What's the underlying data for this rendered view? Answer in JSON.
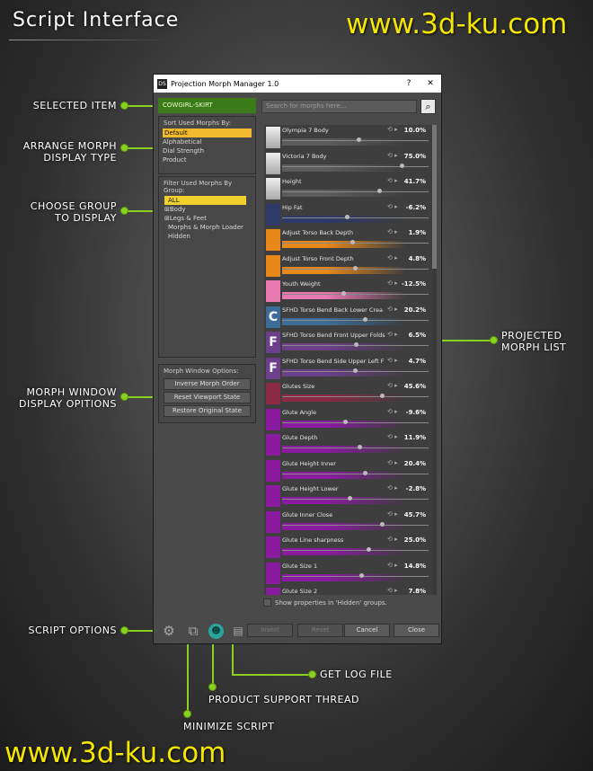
{
  "header": {
    "title": "Script Interface",
    "watermark": "www.3d-ku.com"
  },
  "callouts": {
    "selected_item": "Selected Item",
    "arrange_morph": "Arrange Morph Display Type",
    "choose_group": "Choose Group to Display",
    "morph_window": "Morph Window Display Opitions",
    "script_options": "Script Options",
    "projected_list": "Projected Morph List",
    "get_log": "Get Log File",
    "support_thread": "Product Support Thread",
    "minimize": "Minimize Script"
  },
  "window": {
    "title": "Projection Morph Manager 1.0",
    "logo": "DS",
    "help_btn": "?",
    "close_btn": "✕",
    "selected_item": "COWGIRL-SKIRT",
    "search_placeholder": "Search for morphs here...",
    "sort_title": "Sort Used Morphs By:",
    "sort_options": [
      "Default",
      "Alphabetical",
      "Dial Strength",
      "Product"
    ],
    "filter_title": "Filter Used Morphs By Group:",
    "groups": [
      "ALL",
      "Body",
      "Legs & Feet",
      "Morphs & Morph Loader",
      "Hidden"
    ],
    "window_options_title": "Morph Window Options:",
    "window_buttons": [
      "Inverse Morph Order",
      "Reset Viewport State",
      "Restore Original State"
    ],
    "show_hidden": "Show properties in 'Hidden' groups.",
    "bottom_buttons": [
      "Invert",
      "Reset",
      "Cancel",
      "Close"
    ],
    "accent": "#8ad11f"
  },
  "morphs": [
    {
      "name": "Olympia 7 Body",
      "value": "10.0%",
      "icon": "figure",
      "color": "#5c5c5c"
    },
    {
      "name": "Victoria 7 Body",
      "value": "75.0%",
      "icon": "figure",
      "color": "#5c5c5c"
    },
    {
      "name": "Height",
      "value": "41.7%",
      "icon": "figure",
      "color": "#5c5c5c"
    },
    {
      "name": "Hip Fat",
      "value": "-6.2%",
      "icon": "",
      "color": "#2d3a6a"
    },
    {
      "name": "Adjust Torso Back Depth",
      "value": "1.9%",
      "icon": "",
      "color": "#e8881a"
    },
    {
      "name": "Adjust Torso Front Depth",
      "value": "4.8%",
      "icon": "",
      "color": "#e8881a"
    },
    {
      "name": "Youth Weight",
      "value": "-12.5%",
      "icon": "",
      "color": "#e879b0"
    },
    {
      "name": "SFHD Torso Bend Back Lower Crea",
      "value": "20.2%",
      "icon": "C",
      "color": "#3b6c9a"
    },
    {
      "name": "SFHD Torso Bend Front Upper Folds",
      "value": "6.5%",
      "icon": "F",
      "color": "#6b3f8a"
    },
    {
      "name": "SFHD Torso Bend Side Upper Left F",
      "value": "4.7%",
      "icon": "F",
      "color": "#6b3f8a"
    },
    {
      "name": "Glutes Size",
      "value": "45.6%",
      "icon": "",
      "color": "#8a2a44"
    },
    {
      "name": "Glute Angle",
      "value": "-9.6%",
      "icon": "",
      "color": "#8a1aa0"
    },
    {
      "name": "Glute Depth",
      "value": "11.9%",
      "icon": "",
      "color": "#8a1aa0"
    },
    {
      "name": "Glute Height Inner",
      "value": "20.4%",
      "icon": "",
      "color": "#8a1aa0"
    },
    {
      "name": "Glute Height Lower",
      "value": "-2.8%",
      "icon": "",
      "color": "#8a1aa0"
    },
    {
      "name": "Glute Inner Close",
      "value": "45.7%",
      "icon": "",
      "color": "#8a1aa0"
    },
    {
      "name": "Glute Line sharpness",
      "value": "25.0%",
      "icon": "",
      "color": "#8a1aa0"
    },
    {
      "name": "Glute Size 1",
      "value": "14.8%",
      "icon": "",
      "color": "#8a1aa0"
    },
    {
      "name": "Glute Size 2",
      "value": "7.8%",
      "icon": "",
      "color": "#8a1aa0"
    }
  ]
}
